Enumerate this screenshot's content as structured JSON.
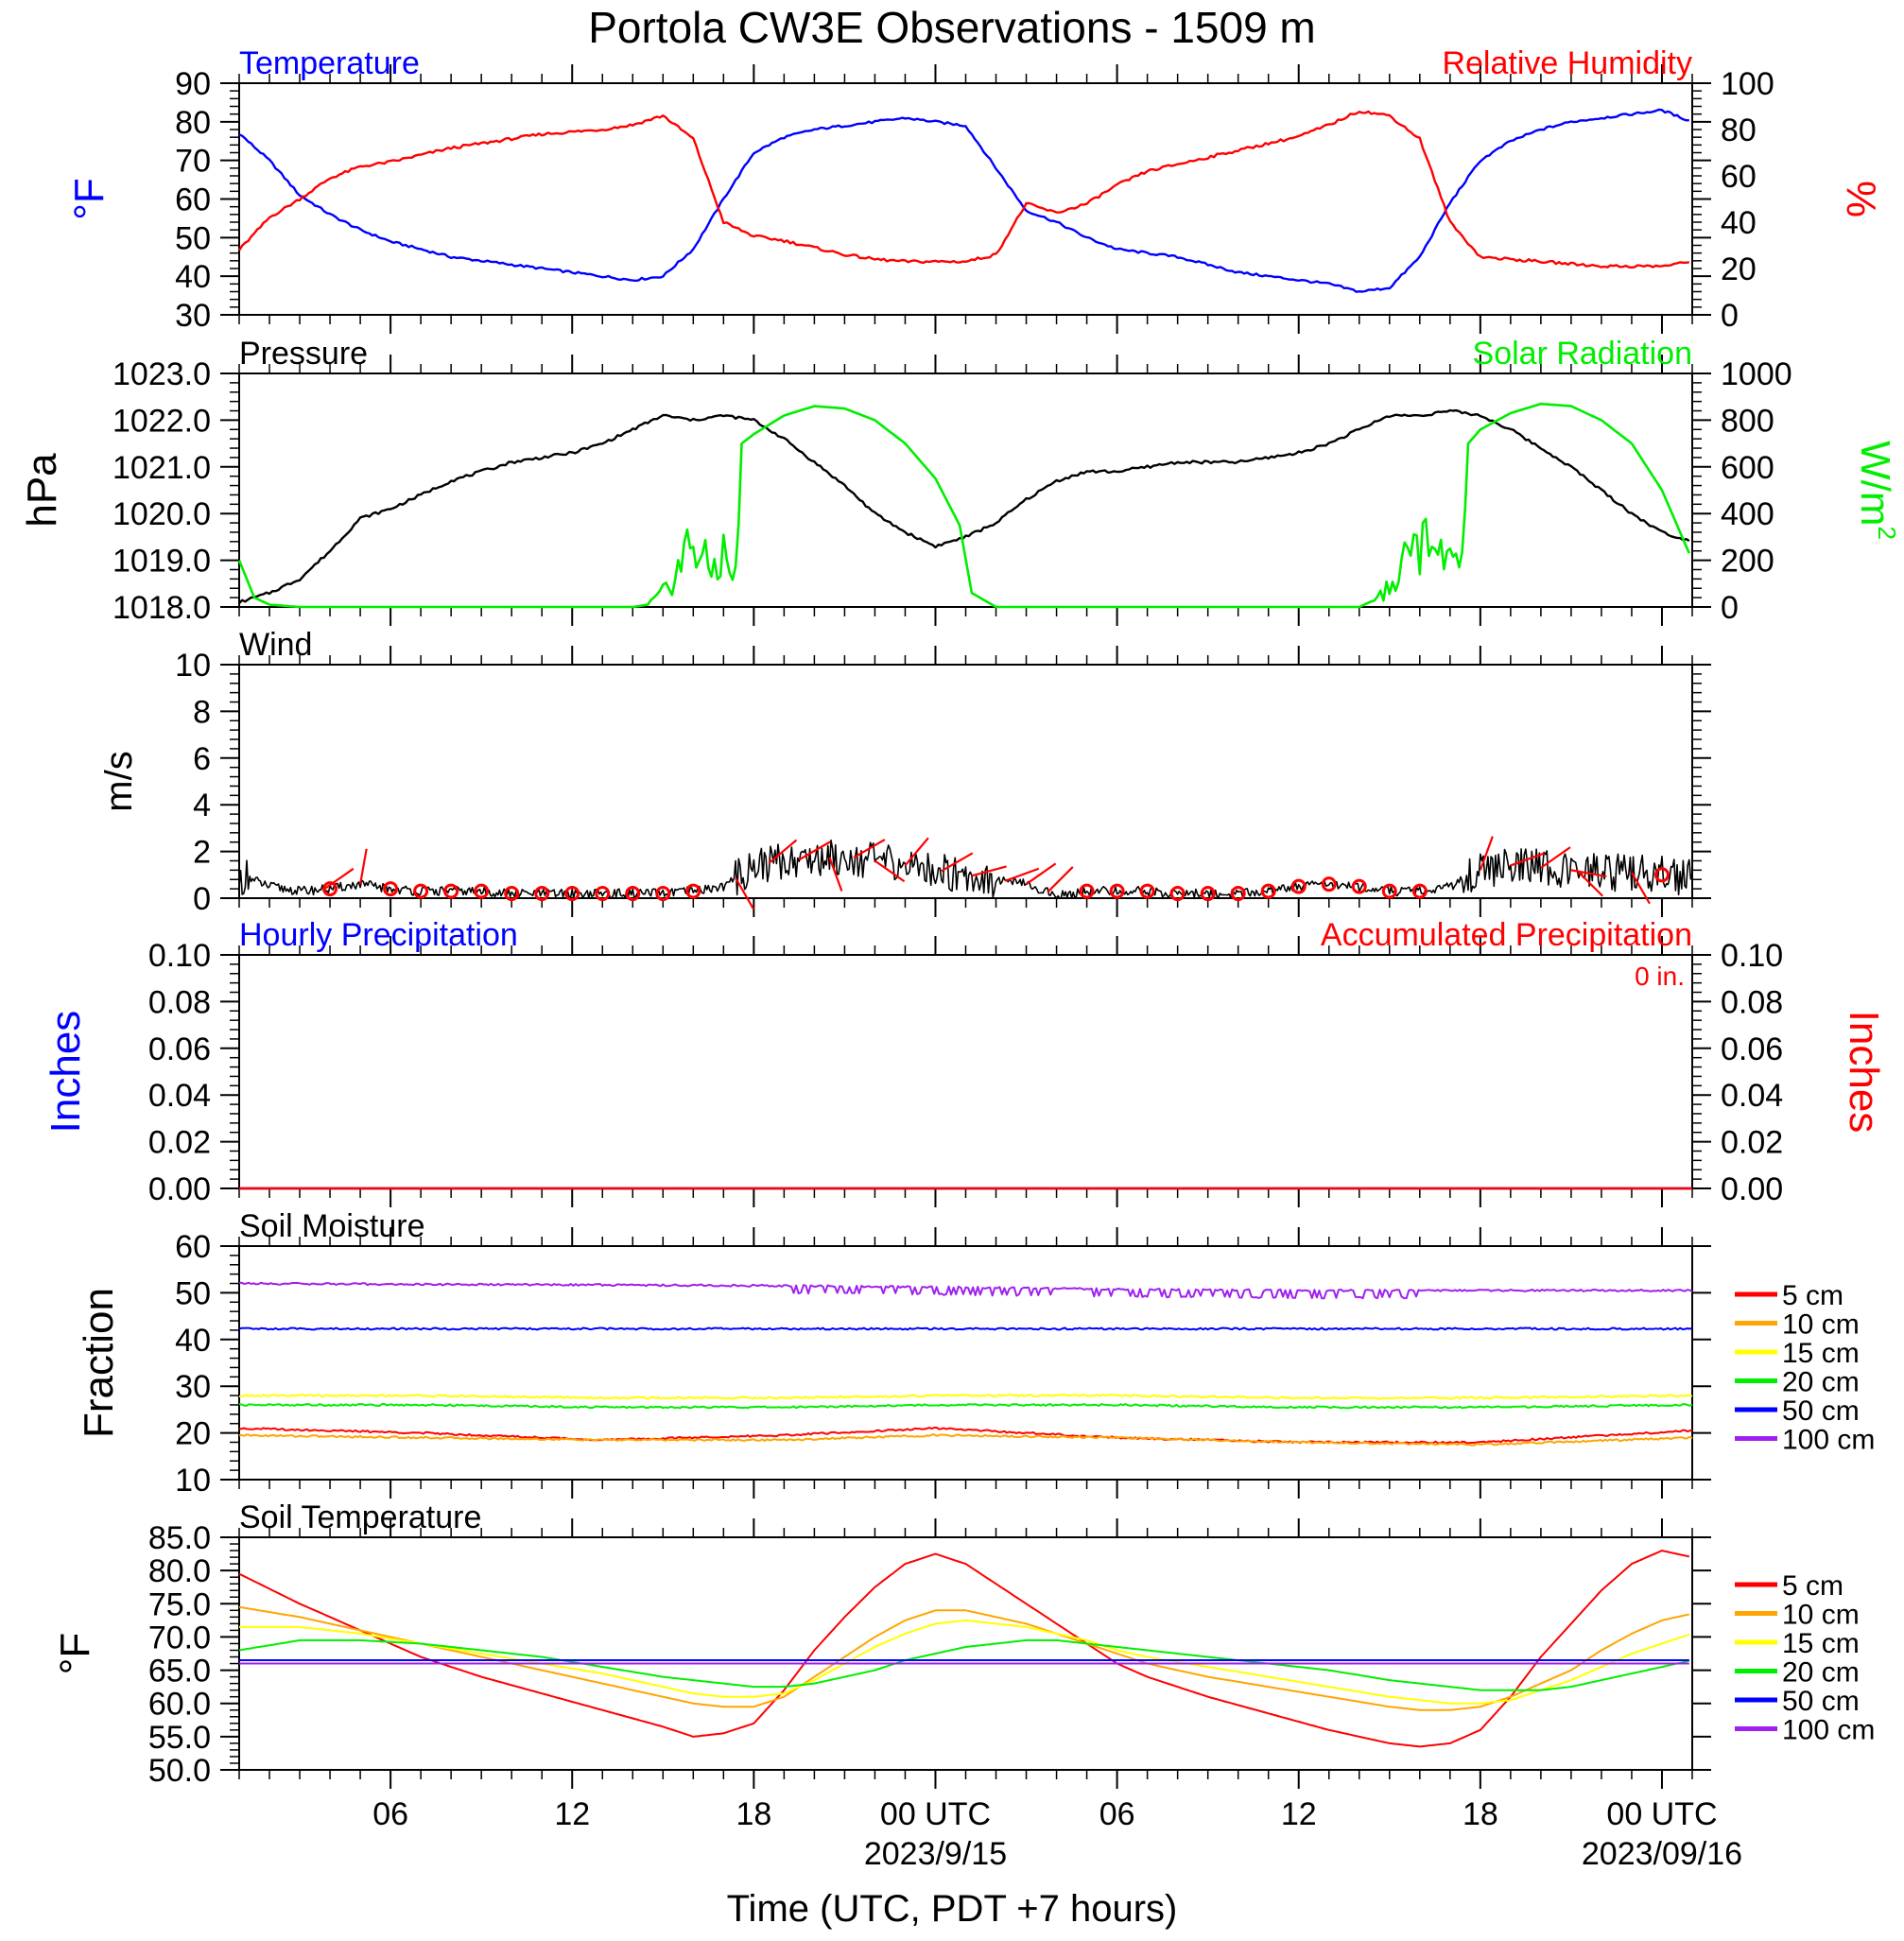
{
  "title": "Portola CW3E Observations - 1509 m",
  "x_axis": {
    "label": "Time (UTC, PDT +7 hours)",
    "ticks": [
      {
        "hour": 6,
        "label": "06",
        "date": ""
      },
      {
        "hour": 12,
        "label": "12",
        "date": ""
      },
      {
        "hour": 18,
        "label": "18",
        "date": ""
      },
      {
        "hour": 24,
        "label": "00 UTC",
        "date": "2023/9/15"
      },
      {
        "hour": 30,
        "label": "06",
        "date": ""
      },
      {
        "hour": 36,
        "label": "12",
        "date": ""
      },
      {
        "hour": 42,
        "label": "18",
        "date": ""
      },
      {
        "hour": 48,
        "label": "00 UTC",
        "date": "2023/09/16"
      }
    ],
    "range_hours": [
      1,
      49
    ]
  },
  "colors": {
    "temperature": "#0000ff",
    "humidity": "#ff0000",
    "pressure": "#000000",
    "solar": "#00ee00",
    "wind": "#000000",
    "barb": "#ff0000",
    "hourly_precip": "#0000ff",
    "accum_precip": "#ff0000",
    "depth": [
      "#ff0000",
      "#ffa500",
      "#ffff00",
      "#00ee00",
      "#0000ff",
      "#a020f0"
    ]
  },
  "chart_data": [
    {
      "type": "line",
      "panel": "temp_rh",
      "left_title": "Temperature",
      "right_title": "Relative Humidity",
      "left_unit": "°F",
      "right_unit": "%",
      "ylim_left": [
        30,
        90
      ],
      "ylim_right": [
        0,
        100
      ],
      "left_ticks": [
        "30",
        "40",
        "50",
        "60",
        "70",
        "80",
        "90"
      ],
      "right_ticks": [
        "0",
        "20",
        "40",
        "60",
        "80",
        "100"
      ],
      "series": [
        {
          "name": "Temperature",
          "axis": "left",
          "x": [
            1,
            2,
            3,
            4,
            5,
            6,
            7,
            8,
            9,
            10,
            11,
            12,
            13,
            14,
            15,
            16,
            17,
            18,
            19,
            20,
            21,
            22,
            23,
            24,
            25,
            26,
            27,
            28,
            29,
            30,
            31,
            32,
            33,
            34,
            35,
            36,
            37,
            38,
            39,
            40,
            41,
            42,
            43,
            44,
            45,
            46,
            47,
            48,
            49
          ],
          "y": [
            77,
            70,
            61,
            56,
            52,
            49,
            47,
            45,
            44,
            43,
            42,
            41,
            40,
            39,
            40,
            47,
            60,
            72,
            76,
            78,
            79,
            80,
            81,
            80,
            79,
            68,
            57,
            54,
            50,
            47,
            46,
            45,
            43,
            41,
            40,
            39,
            38,
            36,
            37,
            45,
            59,
            70,
            75,
            78,
            80,
            81,
            82,
            83,
            80
          ]
        },
        {
          "name": "Relative Humidity",
          "axis": "right",
          "x": [
            1,
            2,
            3,
            4,
            5,
            6,
            7,
            8,
            9,
            10,
            11,
            12,
            13,
            14,
            15,
            16,
            17,
            18,
            19,
            20,
            21,
            22,
            23,
            24,
            25,
            26,
            27,
            28,
            29,
            30,
            31,
            32,
            33,
            34,
            35,
            36,
            37,
            38,
            39,
            40,
            41,
            42,
            43,
            44,
            45,
            46,
            47,
            48,
            49
          ],
          "y": [
            28,
            42,
            50,
            59,
            64,
            66,
            69,
            72,
            74,
            76,
            78,
            79,
            80,
            82,
            86,
            76,
            40,
            34,
            32,
            29,
            26,
            24,
            23,
            23,
            23,
            26,
            48,
            44,
            48,
            56,
            62,
            65,
            68,
            71,
            74,
            77,
            82,
            88,
            86,
            76,
            40,
            25,
            24,
            23,
            22,
            21,
            21,
            21,
            23
          ]
        }
      ]
    },
    {
      "type": "line",
      "panel": "pressure_solar",
      "left_title": "Pressure",
      "right_title": "Solar Radiation",
      "left_unit": "hPa",
      "right_unit": "W/m",
      "right_unit_sup": "2",
      "ylim_left": [
        1018,
        1023
      ],
      "ylim_right": [
        0,
        1000
      ],
      "left_ticks": [
        "1018.0",
        "1019.0",
        "1020.0",
        "1021.0",
        "1022.0",
        "1023.0"
      ],
      "right_ticks": [
        "0",
        "200",
        "400",
        "600",
        "800",
        "1000"
      ],
      "series": [
        {
          "name": "Pressure",
          "axis": "left",
          "x": [
            1,
            2,
            3,
            4,
            5,
            6,
            7,
            8,
            9,
            10,
            11,
            12,
            13,
            14,
            15,
            16,
            17,
            18,
            19,
            20,
            21,
            22,
            23,
            24,
            25,
            26,
            27,
            28,
            29,
            30,
            31,
            32,
            33,
            34,
            35,
            36,
            37,
            38,
            39,
            40,
            41,
            42,
            43,
            44,
            45,
            46,
            47,
            48,
            49
          ],
          "y": [
            1018.1,
            1018.3,
            1018.6,
            1019.2,
            1019.9,
            1020.1,
            1020.4,
            1020.7,
            1020.9,
            1021.1,
            1021.2,
            1021.3,
            1021.5,
            1021.8,
            1022.1,
            1022.0,
            1022.1,
            1022.0,
            1021.6,
            1021.1,
            1020.6,
            1020.0,
            1019.6,
            1019.3,
            1019.5,
            1019.8,
            1020.3,
            1020.7,
            1020.9,
            1020.9,
            1021.0,
            1021.1,
            1021.1,
            1021.1,
            1021.2,
            1021.3,
            1021.5,
            1021.8,
            1022.1,
            1022.1,
            1022.2,
            1022.1,
            1021.8,
            1021.4,
            1021.0,
            1020.5,
            1020.0,
            1019.6,
            1019.4
          ]
        },
        {
          "name": "Solar Radiation",
          "axis": "right",
          "x": [
            1,
            1.5,
            2,
            3,
            14,
            14.5,
            15,
            15.5,
            16,
            16.5,
            17,
            17.4,
            17.6,
            18,
            19,
            20,
            21,
            22,
            23,
            24,
            24.8,
            25.2,
            26,
            37,
            38,
            38.5,
            39,
            39.5,
            40,
            40.5,
            41,
            41.4,
            41.6,
            42,
            43,
            44,
            45,
            46,
            47,
            48,
            49
          ],
          "y": [
            200,
            40,
            10,
            0,
            0,
            10,
            60,
            160,
            300,
            150,
            220,
            120,
            700,
            740,
            820,
            860,
            850,
            800,
            700,
            550,
            350,
            60,
            0,
            0,
            0,
            30,
            80,
            180,
            320,
            180,
            250,
            150,
            700,
            760,
            830,
            870,
            860,
            800,
            700,
            500,
            200
          ]
        }
      ]
    },
    {
      "type": "line",
      "panel": "wind",
      "left_title": "Wind",
      "left_unit": "m/s",
      "ylim_left": [
        0,
        10
      ],
      "left_ticks": [
        "0",
        "2",
        "4",
        "6",
        "8",
        "10"
      ],
      "series": [
        {
          "name": "Wind",
          "x": [
            1,
            2,
            3,
            4,
            5,
            6,
            7,
            8,
            9,
            10,
            11,
            12,
            13,
            14,
            15,
            16,
            17,
            18,
            19,
            20,
            21,
            22,
            23,
            24,
            25,
            26,
            27,
            28,
            29,
            30,
            31,
            32,
            33,
            34,
            35,
            36,
            37,
            38,
            39,
            40,
            41,
            42,
            43,
            44,
            45,
            46,
            47,
            48,
            49
          ],
          "y": [
            1.0,
            0.5,
            0.3,
            0.4,
            0.6,
            0.4,
            0.3,
            0.3,
            0.3,
            0.2,
            0.2,
            0.2,
            0.2,
            0.2,
            0.2,
            0.3,
            0.5,
            1.4,
            1.6,
            1.7,
            1.8,
            1.6,
            1.4,
            1.2,
            1.0,
            0.8,
            0.6,
            0.1,
            0.3,
            0.3,
            0.3,
            0.2,
            0.2,
            0.2,
            0.3,
            0.5,
            0.6,
            0.5,
            0.3,
            0.3,
            0.5,
            1.2,
            1.4,
            1.3,
            1.2,
            1.1,
            1.1,
            1.0,
            0.9
          ]
        }
      ],
      "calm_hours": [
        4,
        6,
        7,
        8,
        9,
        10,
        11,
        12,
        13,
        14,
        15,
        16,
        29,
        30,
        31,
        32,
        33,
        34,
        35,
        36,
        37,
        38,
        39,
        40,
        48
      ]
    },
    {
      "type": "line",
      "panel": "precip",
      "left_title": "Hourly Precipitation",
      "right_title": "Accumulated Precipitation",
      "right_annotation": "0 in.",
      "left_unit": "Inches",
      "right_unit": "Inches",
      "ylim_left": [
        0,
        0.1
      ],
      "ylim_right": [
        0,
        0.1
      ],
      "left_ticks": [
        "0.00",
        "0.02",
        "0.04",
        "0.06",
        "0.08",
        "0.10"
      ],
      "right_ticks": [
        "0.00",
        "0.02",
        "0.04",
        "0.06",
        "0.08",
        "0.10"
      ],
      "series": [
        {
          "name": "Hourly Precipitation",
          "x": [
            1,
            49
          ],
          "y": [
            0,
            0
          ]
        },
        {
          "name": "Accumulated Precipitation",
          "x": [
            1,
            49
          ],
          "y": [
            0,
            0
          ]
        }
      ]
    },
    {
      "type": "line",
      "panel": "soil_moisture",
      "left_title": "Soil Moisture",
      "left_unit": "Fraction",
      "ylim_left": [
        10,
        60
      ],
      "left_ticks": [
        "10",
        "20",
        "30",
        "40",
        "50",
        "60"
      ],
      "x": [
        1,
        7,
        13,
        19,
        24,
        30,
        36,
        42,
        49
      ],
      "series": [
        {
          "name": "5 cm",
          "y": [
            21,
            20,
            18.5,
            19.5,
            21,
            19,
            18,
            18,
            20.5
          ]
        },
        {
          "name": "10 cm",
          "y": [
            19.5,
            19,
            18.5,
            18.5,
            19.5,
            19,
            18,
            17.5,
            19
          ]
        },
        {
          "name": "15 cm",
          "y": [
            28,
            28,
            27.5,
            27.5,
            28,
            28,
            27.5,
            27.5,
            28
          ]
        },
        {
          "name": "20 cm",
          "y": [
            26,
            26,
            25.5,
            25.5,
            26,
            26,
            25.5,
            25.5,
            26
          ]
        },
        {
          "name": "50 cm",
          "y": [
            42.3,
            42.3,
            42.3,
            42.3,
            42.3,
            42.3,
            42.3,
            42.3,
            42.3
          ]
        },
        {
          "name": "100 cm",
          "y": [
            52,
            51.8,
            51.7,
            51.5,
            51.2,
            50.8,
            50.5,
            50.5,
            50.5
          ]
        }
      ]
    },
    {
      "type": "line",
      "panel": "soil_temp",
      "left_title": "Soil Temperature",
      "left_unit": "°F",
      "ylim_left": [
        50,
        85
      ],
      "left_ticks": [
        "50.0",
        "55.0",
        "60.0",
        "65.0",
        "70.0",
        "75.0",
        "80.0",
        "85.0"
      ],
      "x": [
        1,
        3,
        5,
        7,
        9,
        11,
        13,
        15,
        16,
        17,
        18,
        19,
        20,
        21,
        22,
        23,
        24,
        25,
        26,
        27,
        28,
        29,
        30,
        31,
        33,
        35,
        37,
        39,
        40,
        41,
        42,
        43,
        44,
        45,
        46,
        47,
        48,
        49
      ],
      "series": [
        {
          "name": "5 cm",
          "y": [
            79.5,
            75,
            71,
            67,
            64,
            61.5,
            59,
            56.5,
            55,
            55.5,
            57,
            62,
            68,
            73,
            77.5,
            81,
            82.5,
            81,
            78,
            75,
            72,
            69,
            66,
            64,
            61,
            58.5,
            56,
            54,
            53.5,
            54,
            56,
            61,
            67,
            72,
            77,
            81,
            83,
            82
          ]
        },
        {
          "name": "10 cm",
          "y": [
            74.5,
            73,
            71,
            69,
            67,
            65,
            63,
            61,
            60,
            59.5,
            59.5,
            61,
            64,
            67,
            70,
            72.5,
            74,
            74,
            73,
            72,
            70.5,
            69,
            67.5,
            66,
            64,
            62.5,
            61,
            59.5,
            59,
            59,
            59.5,
            61,
            63,
            65,
            68,
            70.5,
            72.5,
            73.5
          ]
        },
        {
          "name": "15 cm",
          "y": [
            71.5,
            71.5,
            70.5,
            69,
            67.5,
            66,
            64.5,
            62.5,
            61.5,
            61,
            61,
            61.5,
            63.5,
            66,
            68.5,
            70.5,
            72,
            72.5,
            72,
            71.5,
            70.5,
            69.5,
            68,
            67,
            65.5,
            64,
            62.5,
            61,
            60.5,
            60,
            60,
            60.5,
            62,
            63.5,
            65.5,
            67.5,
            69,
            70.5
          ]
        },
        {
          "name": "20 cm",
          "y": [
            68,
            69.5,
            69.5,
            69,
            68,
            67,
            65.5,
            64,
            63.5,
            63,
            62.5,
            62.5,
            63,
            64,
            65,
            66.5,
            67.5,
            68.5,
            69,
            69.5,
            69.5,
            69,
            68.5,
            68,
            67,
            66,
            65,
            63.5,
            63,
            62.5,
            62,
            62,
            62,
            62.5,
            63.5,
            64.5,
            65.5,
            66.5
          ]
        },
        {
          "name": "50 cm",
          "y": [
            66.5,
            66.5,
            66.5,
            66.5,
            66.5,
            66.5,
            66.5,
            66.5,
            66.5,
            66.5,
            66.5,
            66.5,
            66.5,
            66.5,
            66.5,
            66.5,
            66.5,
            66.5,
            66.5,
            66.5,
            66.5,
            66.5,
            66.5,
            66.5,
            66.5,
            66.5,
            66.5,
            66.5,
            66.5,
            66.5,
            66.5,
            66.5,
            66.5,
            66.5,
            66.5,
            66.5,
            66.5,
            66.5
          ]
        },
        {
          "name": "100 cm",
          "y": [
            66,
            66,
            66,
            66,
            66,
            66,
            66,
            66,
            66,
            66,
            66,
            66,
            66,
            66,
            66,
            66,
            66,
            66,
            66,
            66,
            66,
            66,
            66,
            66,
            66,
            66,
            66,
            66,
            66,
            66,
            66,
            66,
            66,
            66,
            66,
            66,
            66,
            66
          ]
        }
      ]
    }
  ]
}
